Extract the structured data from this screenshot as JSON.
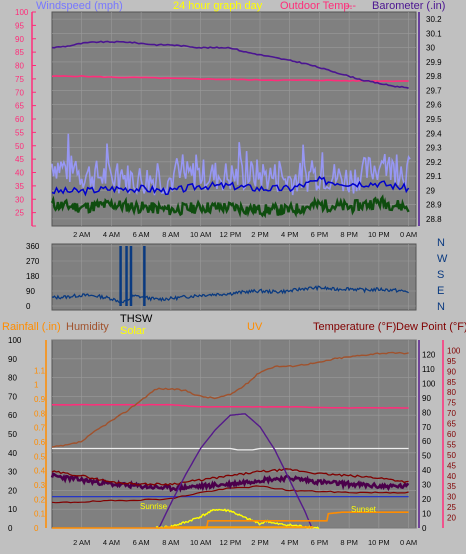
{
  "colors": {
    "background": "#c0c0c0",
    "plot_bg": "#808080",
    "grid": "#9a9a9a",
    "wind_axis": "#ff2d7a",
    "barometer": "#4b1591",
    "outdoor_temp": "#ff2d7a",
    "gust": "#9999ff",
    "avg_wind": "#0000cc",
    "min_wind": "#0f4d0f",
    "direction": "#0a3a80",
    "rain": "#ff8c00",
    "humidity": "#a0522d",
    "solar": "#ffff00",
    "uv": "#551a8b",
    "temperature": "#800000",
    "dewpoint": "#4b004b",
    "thsw": "#ffa000",
    "white_line": "#eeeeee",
    "blue_line": "#1a2bd0"
  },
  "chart_data": [
    {
      "type": "line",
      "title": "24 hour graph day",
      "legend": {
        "windspeed": "Windspeed (mph)",
        "outdoor_temp": "Outdoor Temp.",
        "outdoor_dash": "---",
        "barometer": "Barometer (.in)"
      },
      "xticks": [
        "2 AM",
        "4 AM",
        "6 AM",
        "8 AM",
        "10 AM",
        "12 PM",
        "2 PM",
        "4 PM",
        "6 PM",
        "8 PM",
        "10 PM",
        "0 AM"
      ],
      "x_range_hours": [
        0,
        24.5
      ],
      "y_left": {
        "range": [
          20,
          100
        ],
        "ticks": [
          20,
          25,
          30,
          35,
          40,
          45,
          50,
          55,
          60,
          65,
          70,
          75,
          80,
          85,
          90,
          95,
          100
        ],
        "labels": [
          "",
          "25",
          "30",
          "35",
          "40",
          "45",
          "50",
          "55",
          "60",
          "65",
          "70",
          "75",
          "80",
          "85",
          "90",
          "95",
          "100"
        ]
      },
      "y_right": {
        "range": [
          28.75,
          30.25
        ],
        "ticks": [
          28.8,
          28.9,
          29.0,
          29.1,
          29.2,
          29.3,
          29.4,
          29.5,
          29.6,
          29.7,
          29.8,
          29.9,
          30.0,
          30.1,
          30.2
        ],
        "labels": [
          "28.8",
          "28.9",
          "29",
          "29.1",
          "29.2",
          "29.3",
          "29.4",
          "29.5",
          "29.6",
          "29.7",
          "29.8",
          "29.9",
          "30",
          "30.1",
          "30.2"
        ]
      },
      "series": [
        {
          "name": "Barometer (.in)",
          "axis": "right",
          "x": [
            0,
            1,
            2,
            3,
            4,
            5,
            6,
            7,
            8,
            9,
            10,
            11,
            12,
            13,
            14,
            15,
            16,
            17,
            18,
            19,
            20,
            21,
            22,
            23,
            24
          ],
          "values": [
            30.0,
            30.01,
            30.03,
            30.04,
            30.04,
            30.04,
            30.03,
            30.02,
            30.02,
            30.01,
            30.0,
            30.0,
            30.0,
            29.97,
            29.95,
            29.93,
            29.91,
            29.89,
            29.86,
            29.83,
            29.8,
            29.77,
            29.75,
            29.73,
            29.72
          ]
        },
        {
          "name": "Outdoor Temp.",
          "axis": "left",
          "x": [
            0,
            2,
            4,
            6,
            8,
            10,
            12,
            14,
            16,
            18,
            20,
            22,
            24
          ],
          "values": [
            76,
            76,
            75.6,
            75.5,
            75.2,
            75.0,
            74.8,
            74.6,
            74.5,
            74.5,
            74.3,
            74.2,
            74.2
          ]
        },
        {
          "axis": "left",
          "x": [
            0,
            2,
            4,
            6,
            8,
            10,
            12,
            14,
            16,
            18,
            20,
            22,
            24
          ],
          "values": [
            33,
            33,
            34,
            34,
            33,
            35,
            35,
            34,
            34,
            37,
            36,
            36,
            34
          ]
        },
        {
          "axis": "left",
          "x": [
            0,
            2,
            4,
            6,
            8,
            10,
            12,
            14,
            16,
            18,
            20,
            22,
            24
          ],
          "values": [
            28,
            27,
            28,
            27,
            26,
            27,
            27,
            26,
            26,
            28,
            27,
            29,
            27
          ]
        },
        {
          "axis": "left",
          "x": [
            0,
            2,
            4,
            6,
            8,
            10,
            12,
            14,
            16,
            18,
            20,
            22,
            24
          ],
          "values": [
            41,
            37,
            36,
            35,
            35,
            37,
            36,
            37,
            35,
            37,
            35,
            40,
            38
          ]
        }
      ]
    },
    {
      "type": "line",
      "y_left": {
        "range": [
          0,
          360
        ],
        "ticks": [
          0,
          90,
          180,
          270,
          360
        ],
        "labels": [
          "0",
          "90",
          "180",
          "270",
          "360"
        ]
      },
      "y_right_labels": [
        "N",
        "W",
        "S",
        "E",
        "N"
      ],
      "series_label": "THSW",
      "series": [
        {
          "axis": "left",
          "x": [
            0,
            1,
            2,
            3,
            4,
            4.8,
            5.5,
            6,
            7,
            8,
            9,
            10,
            11,
            12,
            13,
            14,
            15,
            16,
            17,
            18,
            19,
            20,
            21,
            22,
            23,
            24
          ],
          "values": [
            50,
            55,
            65,
            60,
            45,
            20,
            60,
            55,
            40,
            45,
            55,
            65,
            70,
            75,
            85,
            90,
            85,
            90,
            105,
            110,
            100,
            105,
            95,
            100,
            95,
            85
          ]
        }
      ],
      "spikes_hours": [
        4.6,
        5.0,
        5.3,
        6.2
      ]
    },
    {
      "type": "line",
      "legend": {
        "rainfall": "Rainfall (.in)",
        "humidity": "Humidity",
        "solar": "Solar",
        "uv": "UV",
        "temperature": "Temperature (°F)",
        "dewpoint": "Dew Point (°F)"
      },
      "annotations": {
        "sunrise": "Sunrise",
        "sunset": "Sunset"
      },
      "xticks": [
        "2 AM",
        "4 AM",
        "6 AM",
        "8 AM",
        "10 AM",
        "12 PM",
        "2 PM",
        "4 PM",
        "6 PM",
        "8 PM",
        "10 PM",
        "0 AM"
      ],
      "y_humidity": {
        "range": [
          0,
          100
        ],
        "ticks": [
          0,
          10,
          20,
          30,
          40,
          50,
          60,
          70,
          80,
          90,
          100
        ],
        "labels": [
          "0",
          "10",
          "20",
          "30",
          "40",
          "50",
          "60",
          "70",
          "80",
          "90",
          "100"
        ]
      },
      "y_rain": {
        "range": [
          0,
          1.2
        ],
        "ticks": [
          0,
          0.1,
          0.2,
          0.3,
          0.4,
          0.5,
          0.6,
          0.7,
          0.8,
          0.9,
          1.0,
          1.1
        ],
        "labels": [
          "0",
          "0.1",
          "0.2",
          "0.3",
          "0.4",
          "0.5",
          "0.6",
          "0.7",
          "0.8",
          "0.9",
          "1",
          "1.1"
        ]
      },
      "y_right_inner": {
        "range": [
          0,
          130
        ],
        "ticks": [
          0,
          10,
          20,
          30,
          40,
          50,
          60,
          70,
          80,
          90,
          100,
          110,
          120
        ],
        "labels": [
          "0",
          "10",
          "20",
          "30",
          "40",
          "50",
          "60",
          "70",
          "80",
          "90",
          "100",
          "110",
          "120"
        ]
      },
      "y_right_outer": {
        "range": [
          15,
          105
        ],
        "ticks": [
          20,
          25,
          30,
          35,
          40,
          45,
          50,
          55,
          60,
          65,
          70,
          75,
          80,
          85,
          90,
          95,
          100
        ],
        "labels": [
          "20",
          "25",
          "30",
          "35",
          "40",
          "45",
          "50",
          "55",
          "60",
          "65",
          "70",
          "75",
          "80",
          "85",
          "90",
          "95",
          "100"
        ]
      },
      "series": [
        {
          "name": "Humidity",
          "axis": "humidity",
          "x": [
            0,
            1,
            2,
            3,
            4,
            5,
            6,
            7,
            8,
            9,
            10,
            11,
            12,
            13,
            14,
            15,
            16,
            17,
            18,
            19,
            20,
            21,
            22,
            23,
            24
          ],
          "values": [
            43,
            44,
            46,
            52,
            57,
            62,
            68,
            74,
            74,
            73,
            70,
            69,
            71,
            76,
            83,
            86,
            86,
            87,
            88,
            90,
            91,
            92,
            93,
            93,
            93
          ]
        },
        {
          "axis": "right_outer",
          "x": [
            0,
            4,
            8,
            10,
            12,
            14,
            16,
            20,
            24
          ],
          "values": [
            74,
            74,
            74,
            73,
            73,
            73,
            73,
            72.5,
            72.5
          ]
        },
        {
          "name": "UV",
          "axis": "right_inner",
          "x": [
            7.2,
            8,
            9,
            10,
            11,
            12,
            13,
            14,
            15,
            16,
            17,
            17.5
          ],
          "values": [
            0,
            17,
            37,
            55,
            68,
            78,
            79,
            70,
            54,
            33,
            12,
            0
          ]
        },
        {
          "axis": "right_inner",
          "x": [
            0,
            12,
            12.5,
            13,
            13.5,
            14,
            24
          ],
          "values": [
            55,
            55,
            54,
            54,
            54,
            55,
            55
          ]
        },
        {
          "name": "Temperature (°F)",
          "axis": "right_outer",
          "x": [
            0,
            2,
            4,
            6,
            8,
            10,
            12,
            14,
            16,
            18,
            20,
            22,
            24
          ],
          "values": [
            42,
            40,
            37,
            36,
            36,
            38,
            40,
            42,
            43,
            41,
            40,
            39,
            37
          ]
        },
        {
          "name": "Dew Point (°F)",
          "axis": "right_outer",
          "x": [
            0,
            2,
            4,
            6,
            8,
            10,
            12,
            14,
            16,
            18,
            20,
            22,
            24
          ],
          "values": [
            40,
            38,
            36,
            35,
            34,
            35,
            36,
            38,
            39,
            37,
            36,
            35,
            35
          ]
        },
        {
          "axis": "right_outer",
          "x": [
            0,
            24
          ],
          "values": [
            30,
            30
          ]
        },
        {
          "axis": "right_outer",
          "x": [
            0,
            4,
            8,
            10,
            12,
            14,
            16,
            20,
            24
          ],
          "values": [
            27,
            28,
            29,
            32,
            34,
            35,
            33,
            32,
            32
          ]
        },
        {
          "name": "Solar",
          "axis": "rain",
          "x": [
            7,
            8,
            9,
            10,
            11,
            12,
            13,
            14,
            14.5,
            15,
            16,
            17,
            18
          ],
          "values": [
            0,
            0.01,
            0.04,
            0.08,
            0.13,
            0.12,
            0.07,
            0.03,
            0.05,
            0.03,
            0.02,
            0.01,
            0
          ]
        },
        {
          "name": "Rainfall (.in)",
          "axis": "rain",
          "x": [
            0,
            10.4,
            10.5,
            18.5,
            18.6,
            19.5,
            24
          ],
          "values": [
            0,
            0,
            0.05,
            0.05,
            0.1,
            0.11,
            0.11
          ]
        }
      ]
    }
  ]
}
